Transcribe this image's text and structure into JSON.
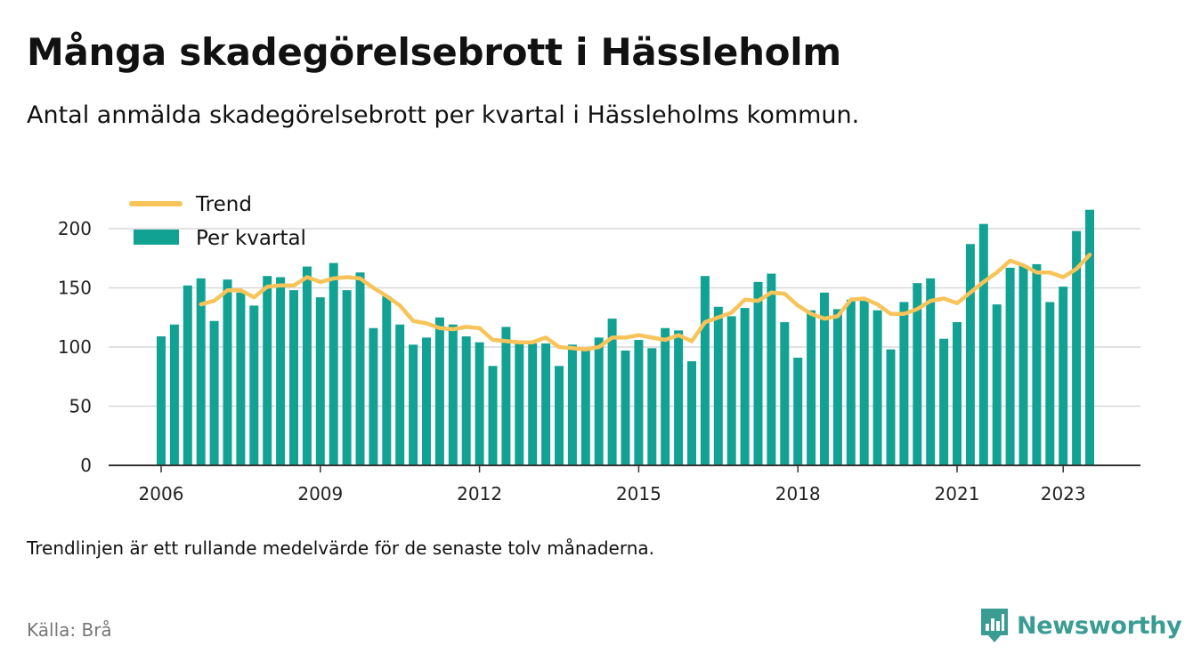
{
  "title": "Många skadegörelsebrott i Hässleholm",
  "subtitle": "Antal anmälda skadegörelsebrott per kvartal i Hässleholms kommun.",
  "footnote": "Trendlinjen är ett rullande medelvärde för de senaste tolv månaderna.",
  "source": "Källa: Brå",
  "brand": {
    "name": "Newsworthy",
    "icon": "newsworthy-logo-icon",
    "color": "#3a9c93"
  },
  "colors": {
    "bars": "#12a294",
    "trend": "#f8c45a",
    "grid": "#d9d9d9",
    "axis": "#333333"
  },
  "chart_data": {
    "type": "bar",
    "legend": {
      "placement": "top-left",
      "trend_label": "Trend",
      "bars_label": "Per kvartal"
    },
    "x_ticks": [
      "2006",
      "2009",
      "2012",
      "2015",
      "2018",
      "2021",
      "2023"
    ],
    "ylim": [
      0,
      220
    ],
    "y_ticks": [
      0,
      50,
      100,
      150,
      200
    ],
    "grid": true,
    "start_year": 2006,
    "series": [
      {
        "name": "Per kvartal",
        "type": "bar",
        "values": [
          109,
          119,
          152,
          158,
          122,
          157,
          146,
          135,
          160,
          159,
          148,
          168,
          142,
          171,
          148,
          163,
          116,
          143,
          119,
          102,
          108,
          125,
          119,
          109,
          104,
          84,
          117,
          103,
          103,
          103,
          84,
          102,
          97,
          108,
          124,
          97,
          106,
          99,
          116,
          114,
          88,
          160,
          134,
          126,
          133,
          155,
          162,
          121,
          91,
          131,
          146,
          132,
          140,
          139,
          131,
          98,
          138,
          154,
          158,
          107,
          121,
          187,
          204,
          136,
          167,
          169,
          170,
          138,
          151,
          198,
          216
        ]
      },
      {
        "name": "Trend",
        "type": "line",
        "values": [
          null,
          null,
          null,
          136,
          139,
          148,
          148,
          142,
          151,
          152,
          152,
          159,
          155,
          158,
          159,
          158,
          150,
          143,
          135,
          122,
          120,
          116,
          115,
          117,
          116,
          106,
          105,
          104,
          104,
          108,
          100,
          99,
          98,
          100,
          108,
          108,
          110,
          108,
          106,
          110,
          105,
          121,
          125,
          129,
          140,
          139,
          146,
          145,
          135,
          128,
          124,
          126,
          140,
          141,
          136,
          128,
          128,
          132,
          139,
          141,
          137,
          146,
          155,
          163,
          173,
          169,
          163,
          163,
          159,
          166,
          178
        ]
      }
    ]
  }
}
